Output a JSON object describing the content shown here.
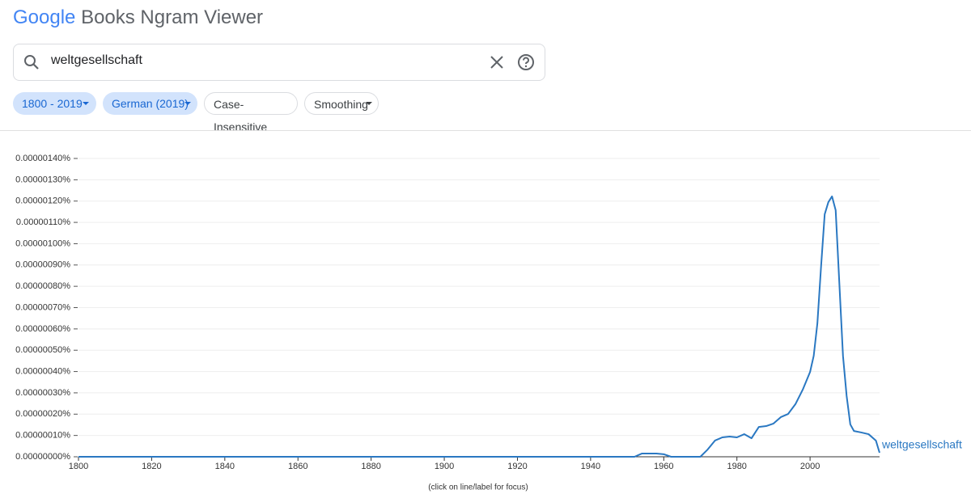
{
  "header": {
    "logo_google": "Google",
    "logo_rest": "Books Ngram Viewer"
  },
  "search": {
    "query": "weltgesellschaft"
  },
  "chips": [
    "1800 - 2019",
    "German (2019)",
    "Case-Insensitive",
    "Smoothing"
  ],
  "chart_data": {
    "type": "line",
    "x": [
      1800,
      1950,
      1952,
      1954,
      1956,
      1958,
      1960,
      1962,
      1970,
      1972,
      1974,
      1976,
      1978,
      1980,
      1982,
      1984,
      1986,
      1988,
      1990,
      1992,
      1994,
      1996,
      1998,
      2000,
      2001,
      2002,
      2003,
      2004,
      2005,
      2006,
      2007,
      2008,
      2009,
      2010,
      2011,
      2012,
      2014,
      2016,
      2018,
      2019
    ],
    "series": [
      {
        "name": "weltgesellschaft",
        "color": "#2a78c2",
        "values": [
          0,
          0,
          0,
          1.5e-08,
          1.5e-08,
          1.5e-08,
          1.2e-08,
          0,
          0,
          3.4e-08,
          7.6e-08,
          9.1e-08,
          9.5e-08,
          9.1e-08,
          1.06e-07,
          8.7e-08,
          1.4e-07,
          1.44e-07,
          1.56e-07,
          1.86e-07,
          2.01e-07,
          2.47e-07,
          3.15e-07,
          3.98e-07,
          4.74e-07,
          6.26e-07,
          8.91e-07,
          1.138e-06,
          1.195e-06,
          1.222e-06,
          1.157e-06,
          8.16e-07,
          4.74e-07,
          2.85e-07,
          1.52e-07,
          1.21e-07,
          1.14e-07,
          1.06e-07,
          7.6e-08,
          1.9e-08
        ]
      }
    ],
    "xlim": [
      1800,
      2019
    ],
    "xticks": [
      1800,
      1820,
      1840,
      1860,
      1880,
      1900,
      1920,
      1940,
      1960,
      1980,
      2000
    ],
    "ylim": [
      0,
      1.4e-06
    ],
    "yticks": [
      {
        "value": 0,
        "label": "0.00000000%"
      },
      {
        "value": 1e-07,
        "label": "0.00000010%"
      },
      {
        "value": 2e-07,
        "label": "0.00000020%"
      },
      {
        "value": 3e-07,
        "label": "0.00000030%"
      },
      {
        "value": 4e-07,
        "label": "0.00000040%"
      },
      {
        "value": 5e-07,
        "label": "0.00000050%"
      },
      {
        "value": 6e-07,
        "label": "0.00000060%"
      },
      {
        "value": 7e-07,
        "label": "0.00000070%"
      },
      {
        "value": 8e-07,
        "label": "0.00000080%"
      },
      {
        "value": 9e-07,
        "label": "0.00000090%"
      },
      {
        "value": 1e-06,
        "label": "0.00000100%"
      },
      {
        "value": 1.1e-06,
        "label": "0.00000110%"
      },
      {
        "value": 1.2e-06,
        "label": "0.00000120%"
      },
      {
        "value": 1.3e-06,
        "label": "0.00000130%"
      },
      {
        "value": 1.4e-06,
        "label": "0.00000140%"
      }
    ],
    "grid": true,
    "note": "(click on line/label for focus)"
  }
}
